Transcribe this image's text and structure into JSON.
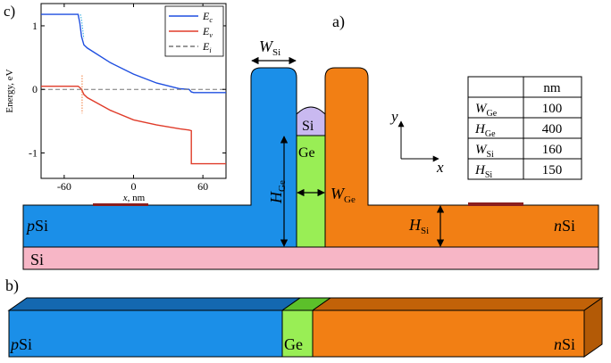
{
  "panels": {
    "a": "a)",
    "b": "b)",
    "c": "c)"
  },
  "colors": {
    "blue": "#1b8fe8",
    "orange": "#f27f14",
    "green": "#99ee55",
    "pink": "#f7b6c6",
    "lilac": "#c9b9f0",
    "contact": "#8b1e1e",
    "ec_line": "#1f4fe0",
    "ev_line": "#e03c2a",
    "ei_line": "#777777"
  },
  "device": {
    "p_region": "Si",
    "p_prefix": "p",
    "n_region": "Si",
    "n_prefix": "n",
    "substrate": "Si",
    "cap_label": "Si",
    "ge_label": "Ge",
    "dim_W_Si": {
      "main": "W",
      "sub": "Si"
    },
    "dim_H_Ge": {
      "main": "H",
      "sub": "Ge"
    },
    "dim_W_Ge": {
      "main": "W",
      "sub": "Ge"
    },
    "dim_H_Si": {
      "main": "H",
      "sub": "Si"
    }
  },
  "axes_indicator": {
    "y": "y",
    "x": "x"
  },
  "table": {
    "header": [
      "",
      "nm"
    ],
    "rows": [
      {
        "main": "W",
        "sub": "Ge",
        "value": "100"
      },
      {
        "main": "H",
        "sub": "Ge",
        "value": "400"
      },
      {
        "main": "W",
        "sub": "Si",
        "value": "160"
      },
      {
        "main": "H",
        "sub": "Si",
        "value": "150"
      }
    ]
  },
  "bar3d": {
    "p_prefix": "p",
    "p_label": "Si",
    "ge_label": "Ge",
    "n_prefix": "n",
    "n_label": "Si"
  },
  "chart_data": {
    "type": "line",
    "title": "",
    "xlabel_var": "x",
    "xlabel_unit": ", nm",
    "ylabel": "Energy, eV",
    "xlim": [
      -80,
      80
    ],
    "ylim": [
      -1.4,
      1.35
    ],
    "xticks": [
      -60,
      0,
      60
    ],
    "yticks": [
      1,
      0,
      -1
    ],
    "legend_position": "top-right",
    "series": [
      {
        "name": "E",
        "sub": "c",
        "style": "solid",
        "x": [
          -80,
          -48,
          -46.5,
          -45,
          -43,
          -40,
          -20,
          0,
          20,
          40,
          48,
          50,
          52,
          55,
          80
        ],
        "y": [
          1.18,
          1.18,
          1.05,
          0.83,
          0.7,
          0.65,
          0.42,
          0.24,
          0.1,
          0.01,
          0.0,
          -0.04,
          -0.05,
          -0.05,
          -0.05
        ]
      },
      {
        "name": "E",
        "sub": "v",
        "style": "solid",
        "x": [
          -80,
          -48,
          -46.5,
          -45,
          -43,
          -40,
          -20,
          0,
          20,
          40,
          48,
          50,
          50.001,
          55,
          80
        ],
        "y": [
          0.05,
          0.05,
          0.03,
          0.0,
          -0.08,
          -0.13,
          -0.33,
          -0.48,
          -0.56,
          -0.62,
          -0.64,
          -0.65,
          -1.17,
          -1.17,
          -1.17
        ]
      },
      {
        "name": "E",
        "sub": "i",
        "style": "dashed",
        "x": [
          -80,
          80
        ],
        "y": [
          0,
          0
        ]
      }
    ]
  }
}
